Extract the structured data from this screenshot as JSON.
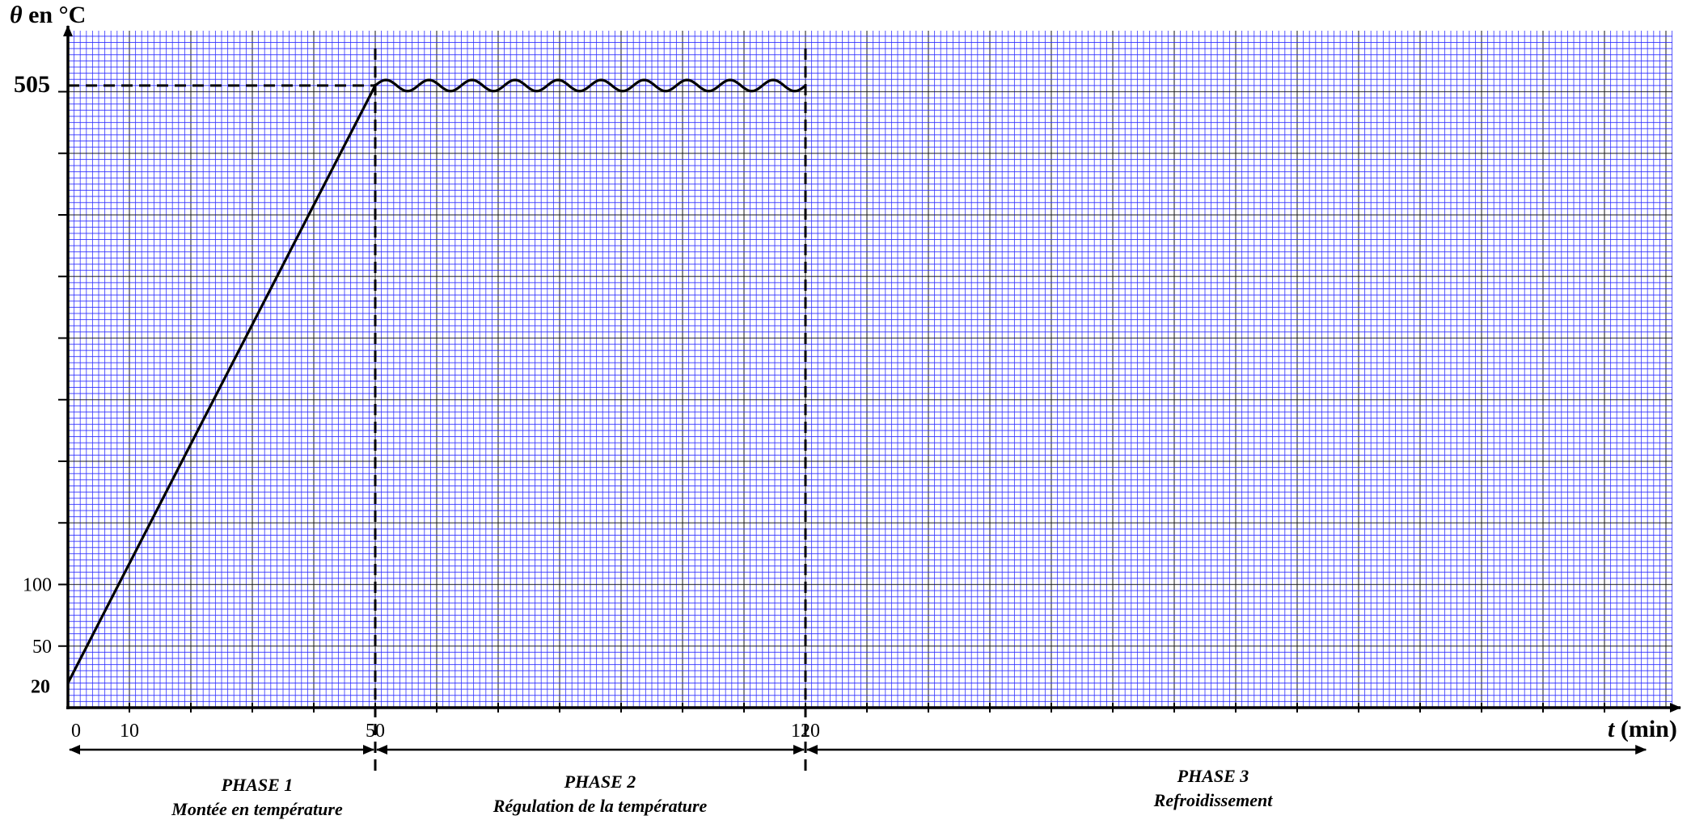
{
  "chart_data": {
    "type": "line",
    "xlabel_sym": "t",
    "xlabel_rest": "(min)",
    "ylabel_sym": "θ",
    "ylabel_rest": "en °C",
    "xlim": [
      0,
      260
    ],
    "ylim": [
      0,
      550
    ],
    "x_ticks": [
      {
        "value": 0,
        "label": "0"
      },
      {
        "value": 10,
        "label": "10"
      },
      {
        "value": 50,
        "label": "50"
      },
      {
        "value": 120,
        "label": "120"
      }
    ],
    "y_ticks": [
      {
        "value": 20,
        "label": "20",
        "bold": true
      },
      {
        "value": 50,
        "label": "50",
        "bold": false
      },
      {
        "value": 100,
        "label": "100",
        "bold": false
      },
      {
        "value": 505,
        "label": "505",
        "bold": true
      }
    ],
    "series": [
      {
        "points": [
          [
            0,
            20
          ],
          [
            50,
            505
          ]
        ],
        "oscillation": {
          "x_start": 50,
          "x_end": 120,
          "center": 505,
          "amplitude": 4.5,
          "periods": 10
        }
      }
    ],
    "reference_lines": [
      {
        "type": "vertical",
        "x": 50
      },
      {
        "type": "vertical",
        "x": 120
      },
      {
        "type": "horizontal",
        "y": 505,
        "x_from": 0,
        "x_to": 50
      }
    ],
    "phases": [
      {
        "x_from": 0,
        "x_to": 50,
        "title": "PHASE 1",
        "subtitle": "Montée en température"
      },
      {
        "x_from": 50,
        "x_to": 120,
        "title": "PHASE 2",
        "subtitle": "Régulation de la température"
      },
      {
        "x_from": 120,
        "x_to": 257,
        "title": "PHASE 3",
        "subtitle": "Refroidissement"
      }
    ],
    "grid": true,
    "grid_color": "#2a2aff"
  }
}
